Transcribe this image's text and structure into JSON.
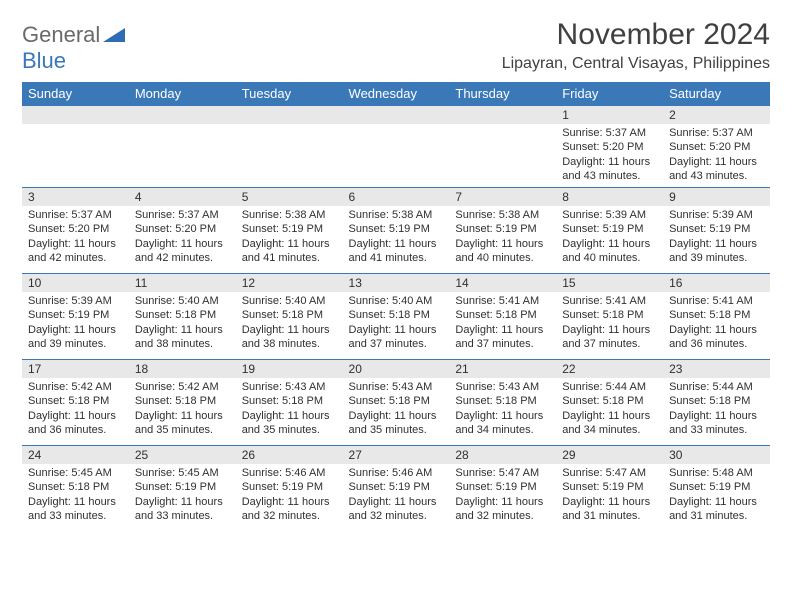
{
  "logo": {
    "word1": "General",
    "word2": "Blue"
  },
  "header": {
    "title": "November 2024",
    "location": "Lipayran, Central Visayas, Philippines"
  },
  "colors": {
    "header_bg": "#3a78b8",
    "header_text": "#ffffff",
    "daynum_bg": "#e8e8e8",
    "border": "#3a78b8",
    "body_text": "#303030",
    "title_text": "#404040"
  },
  "day_names": [
    "Sunday",
    "Monday",
    "Tuesday",
    "Wednesday",
    "Thursday",
    "Friday",
    "Saturday"
  ],
  "days": {
    "1": {
      "rise": "5:37 AM",
      "set": "5:20 PM",
      "dur": "11 hours and 43 minutes."
    },
    "2": {
      "rise": "5:37 AM",
      "set": "5:20 PM",
      "dur": "11 hours and 43 minutes."
    },
    "3": {
      "rise": "5:37 AM",
      "set": "5:20 PM",
      "dur": "11 hours and 42 minutes."
    },
    "4": {
      "rise": "5:37 AM",
      "set": "5:20 PM",
      "dur": "11 hours and 42 minutes."
    },
    "5": {
      "rise": "5:38 AM",
      "set": "5:19 PM",
      "dur": "11 hours and 41 minutes."
    },
    "6": {
      "rise": "5:38 AM",
      "set": "5:19 PM",
      "dur": "11 hours and 41 minutes."
    },
    "7": {
      "rise": "5:38 AM",
      "set": "5:19 PM",
      "dur": "11 hours and 40 minutes."
    },
    "8": {
      "rise": "5:39 AM",
      "set": "5:19 PM",
      "dur": "11 hours and 40 minutes."
    },
    "9": {
      "rise": "5:39 AM",
      "set": "5:19 PM",
      "dur": "11 hours and 39 minutes."
    },
    "10": {
      "rise": "5:39 AM",
      "set": "5:19 PM",
      "dur": "11 hours and 39 minutes."
    },
    "11": {
      "rise": "5:40 AM",
      "set": "5:18 PM",
      "dur": "11 hours and 38 minutes."
    },
    "12": {
      "rise": "5:40 AM",
      "set": "5:18 PM",
      "dur": "11 hours and 38 minutes."
    },
    "13": {
      "rise": "5:40 AM",
      "set": "5:18 PM",
      "dur": "11 hours and 37 minutes."
    },
    "14": {
      "rise": "5:41 AM",
      "set": "5:18 PM",
      "dur": "11 hours and 37 minutes."
    },
    "15": {
      "rise": "5:41 AM",
      "set": "5:18 PM",
      "dur": "11 hours and 37 minutes."
    },
    "16": {
      "rise": "5:41 AM",
      "set": "5:18 PM",
      "dur": "11 hours and 36 minutes."
    },
    "17": {
      "rise": "5:42 AM",
      "set": "5:18 PM",
      "dur": "11 hours and 36 minutes."
    },
    "18": {
      "rise": "5:42 AM",
      "set": "5:18 PM",
      "dur": "11 hours and 35 minutes."
    },
    "19": {
      "rise": "5:43 AM",
      "set": "5:18 PM",
      "dur": "11 hours and 35 minutes."
    },
    "20": {
      "rise": "5:43 AM",
      "set": "5:18 PM",
      "dur": "11 hours and 35 minutes."
    },
    "21": {
      "rise": "5:43 AM",
      "set": "5:18 PM",
      "dur": "11 hours and 34 minutes."
    },
    "22": {
      "rise": "5:44 AM",
      "set": "5:18 PM",
      "dur": "11 hours and 34 minutes."
    },
    "23": {
      "rise": "5:44 AM",
      "set": "5:18 PM",
      "dur": "11 hours and 33 minutes."
    },
    "24": {
      "rise": "5:45 AM",
      "set": "5:18 PM",
      "dur": "11 hours and 33 minutes."
    },
    "25": {
      "rise": "5:45 AM",
      "set": "5:19 PM",
      "dur": "11 hours and 33 minutes."
    },
    "26": {
      "rise": "5:46 AM",
      "set": "5:19 PM",
      "dur": "11 hours and 32 minutes."
    },
    "27": {
      "rise": "5:46 AM",
      "set": "5:19 PM",
      "dur": "11 hours and 32 minutes."
    },
    "28": {
      "rise": "5:47 AM",
      "set": "5:19 PM",
      "dur": "11 hours and 32 minutes."
    },
    "29": {
      "rise": "5:47 AM",
      "set": "5:19 PM",
      "dur": "11 hours and 31 minutes."
    },
    "30": {
      "rise": "5:48 AM",
      "set": "5:19 PM",
      "dur": "11 hours and 31 minutes."
    }
  },
  "labels": {
    "sunrise": "Sunrise: ",
    "sunset": "Sunset: ",
    "daylight": "Daylight: "
  },
  "grid": [
    [
      null,
      null,
      null,
      null,
      null,
      "1",
      "2"
    ],
    [
      "3",
      "4",
      "5",
      "6",
      "7",
      "8",
      "9"
    ],
    [
      "10",
      "11",
      "12",
      "13",
      "14",
      "15",
      "16"
    ],
    [
      "17",
      "18",
      "19",
      "20",
      "21",
      "22",
      "23"
    ],
    [
      "24",
      "25",
      "26",
      "27",
      "28",
      "29",
      "30"
    ]
  ]
}
